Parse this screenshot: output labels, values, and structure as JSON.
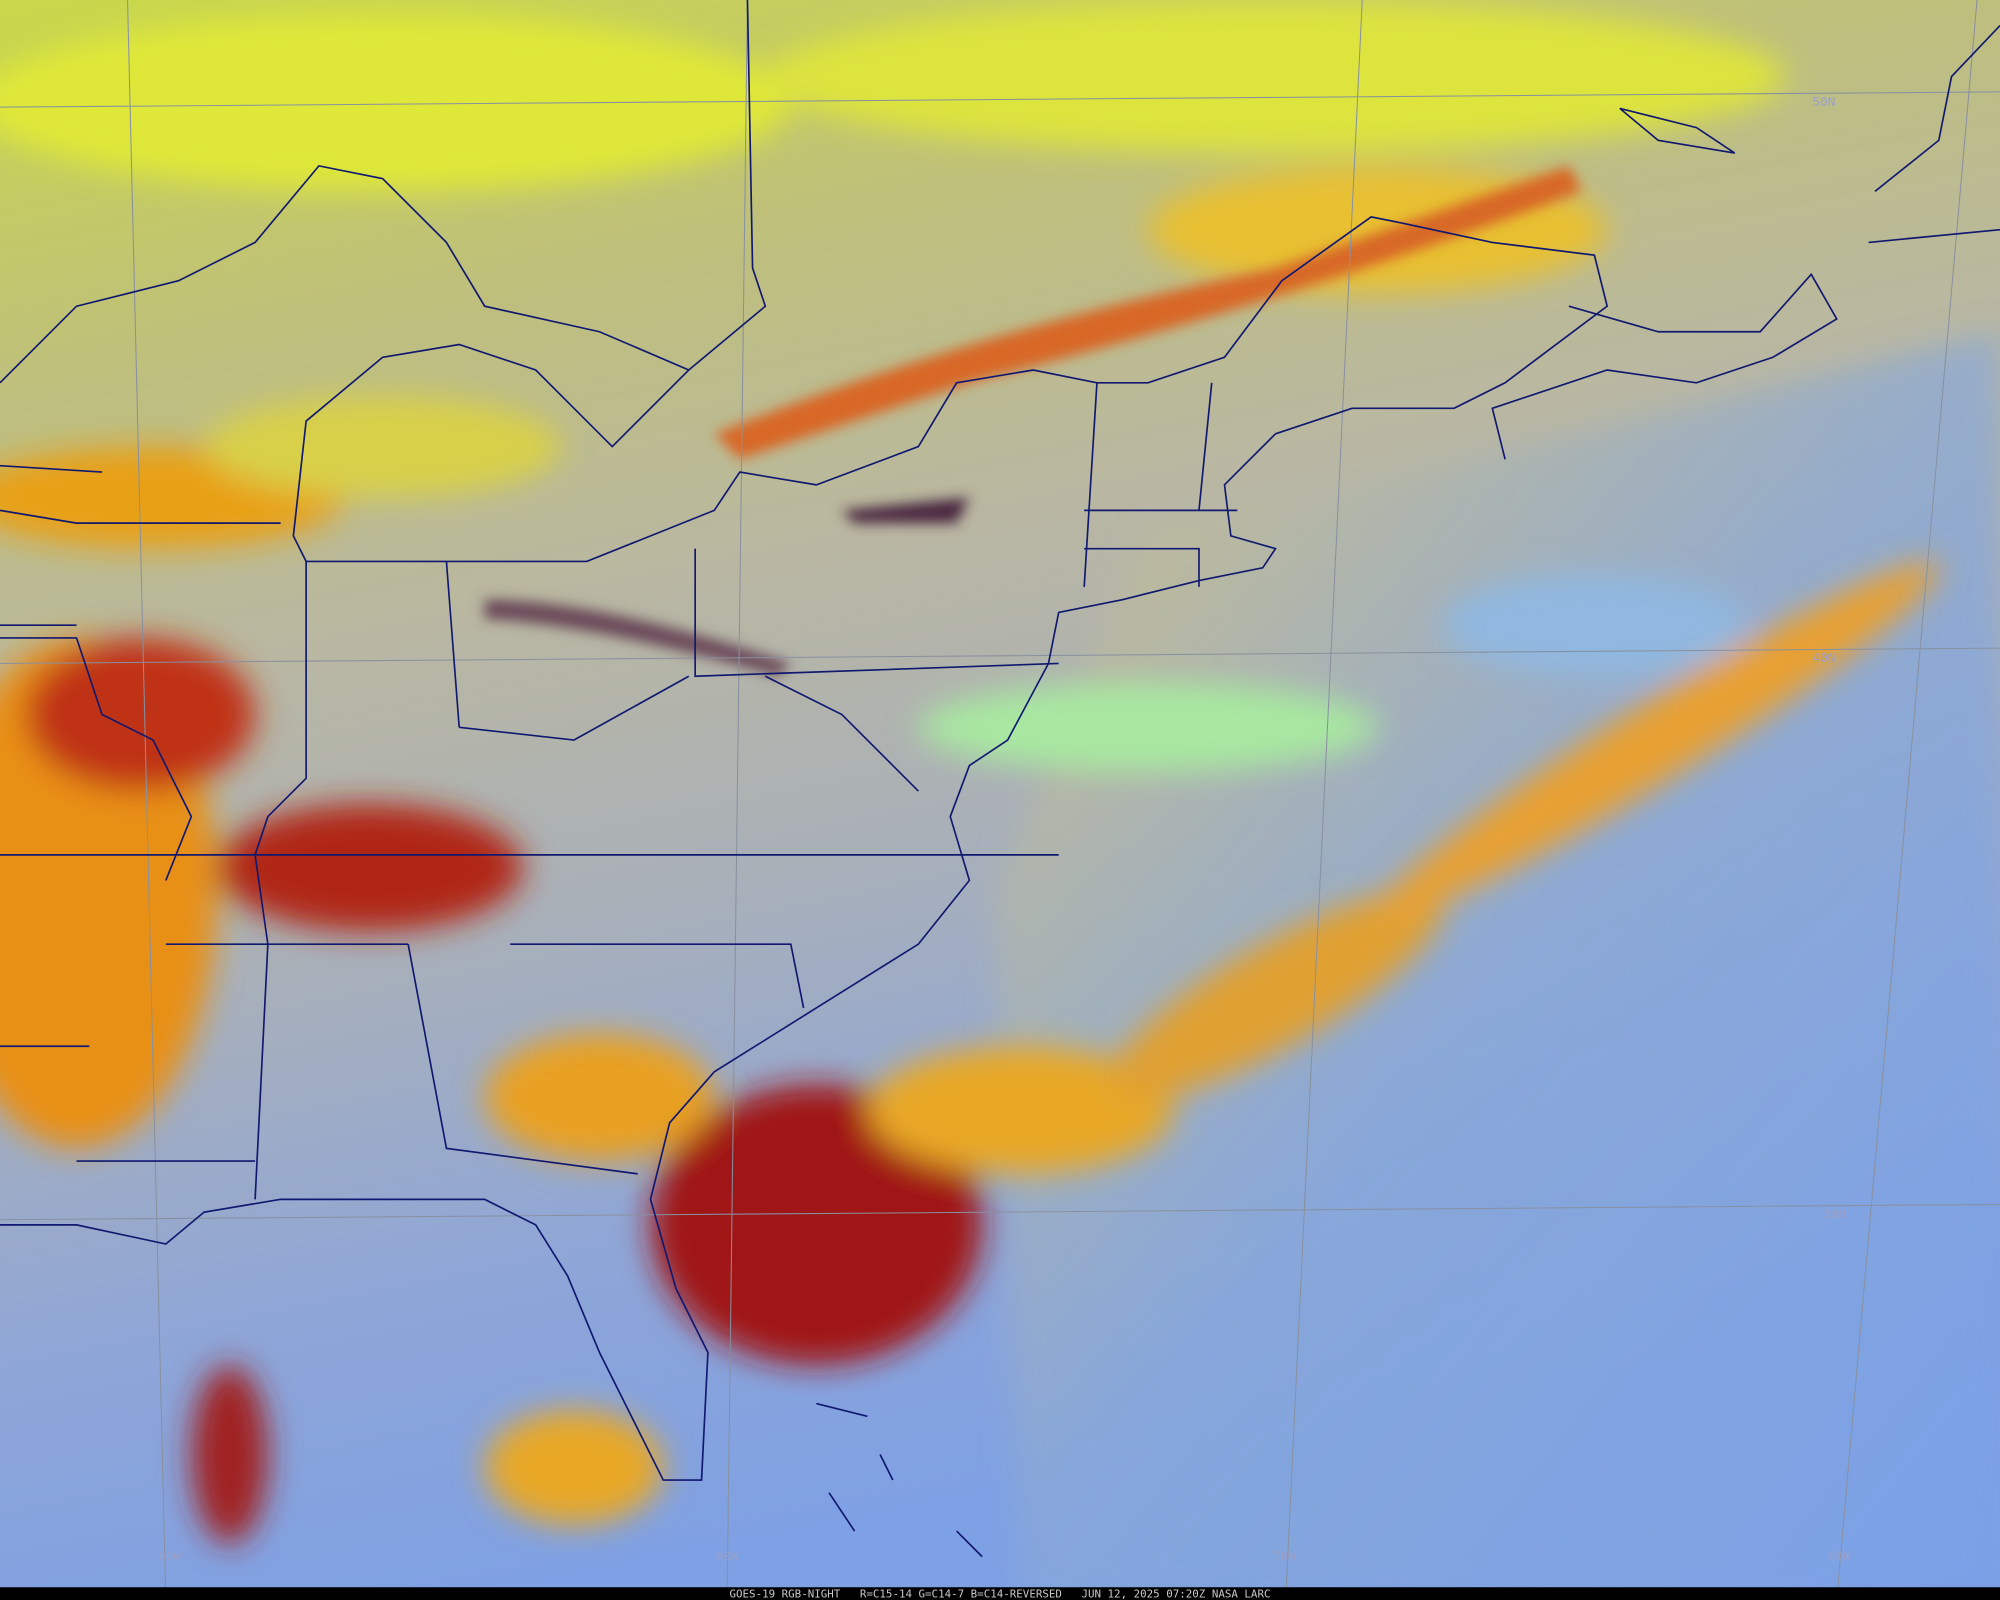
{
  "map": {
    "latitude_labels": [
      "50N",
      "40N",
      "30N"
    ],
    "longitude_labels": [
      "90W",
      "80W",
      "70W",
      "60W"
    ],
    "footer": "GOES-19 RGB-NIGHT   R=C15-14 G=C14-7 B=C14-REVERSED   JUN 12, 2025 07:20Z NASA LARC"
  }
}
